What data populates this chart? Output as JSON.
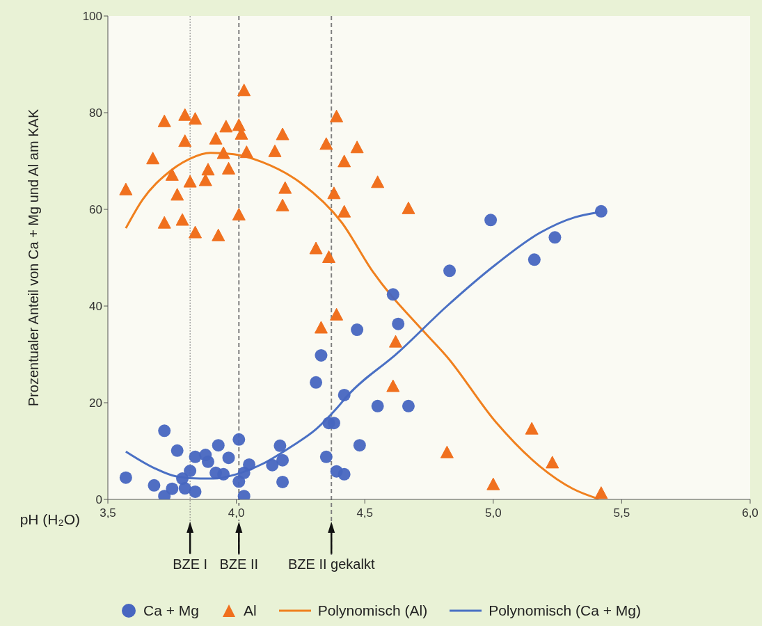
{
  "chart_data": {
    "type": "scatter",
    "ylabel": "Prozentualer Anteil von Ca + Mg und Al am KAK",
    "xlabel": "pH (H₂O)",
    "xlim": [
      3.5,
      6.0
    ],
    "xticks": [
      {
        "value": 3.5,
        "label": "3,5"
      },
      {
        "value": 4.0,
        "label": "4,0"
      },
      {
        "value": 4.5,
        "label": "4,5"
      },
      {
        "value": 5.0,
        "label": "5,0"
      },
      {
        "value": 5.5,
        "label": "5,5"
      },
      {
        "value": 6.0,
        "label": "6,0"
      }
    ],
    "ylim": [
      0,
      100
    ],
    "yticks": [
      0,
      20,
      40,
      60,
      80,
      100
    ],
    "grid": false,
    "legend": "bottom",
    "series": [
      {
        "name": "Ca + Mg",
        "type": "scatter",
        "marker": "circle",
        "color": "#4766c0",
        "x": [
          3.57,
          3.68,
          3.72,
          3.72,
          3.77,
          3.75,
          3.79,
          3.8,
          3.82,
          3.84,
          3.84,
          3.88,
          3.89,
          3.92,
          3.93,
          3.95,
          3.97,
          4.01,
          4.01,
          4.03,
          4.05,
          4.03,
          4.14,
          4.17,
          4.18,
          4.18,
          4.35,
          4.36,
          4.38,
          4.39,
          4.42,
          4.48,
          4.42,
          4.55,
          4.67,
          4.31,
          4.33,
          4.47,
          4.63,
          4.61,
          4.83,
          4.99,
          5.16,
          5.24,
          5.42
        ],
        "values": [
          4.5,
          2.9,
          14.2,
          0.7,
          10.1,
          2.2,
          4.3,
          2.3,
          5.9,
          1.6,
          8.8,
          9.2,
          7.8,
          5.5,
          11.2,
          5.2,
          8.6,
          12.4,
          3.7,
          5.5,
          7.2,
          0.7,
          7.1,
          11.1,
          8.1,
          3.6,
          8.8,
          15.8,
          15.8,
          5.8,
          5.2,
          11.2,
          21.6,
          19.3,
          19.3,
          24.2,
          29.8,
          35.1,
          36.3,
          42.4,
          47.3,
          57.8,
          49.6,
          54.2,
          59.6
        ]
      },
      {
        "name": "Al",
        "type": "scatter",
        "marker": "triangle",
        "color": "#f0701e",
        "x": [
          3.57,
          3.675,
          3.72,
          3.8,
          3.84,
          3.8,
          3.75,
          3.77,
          3.72,
          3.79,
          3.82,
          3.84,
          3.88,
          3.89,
          3.92,
          3.93,
          3.96,
          3.95,
          3.97,
          4.01,
          4.02,
          4.01,
          4.03,
          4.04,
          4.15,
          4.18,
          4.19,
          4.18,
          4.31,
          4.36,
          4.35,
          4.39,
          4.38,
          4.42,
          4.42,
          4.47,
          4.55,
          4.67,
          4.33,
          4.39,
          4.62,
          4.61,
          4.82,
          5.0,
          5.15,
          5.23,
          5.42
        ],
        "values": [
          64,
          70.4,
          78.1,
          79.4,
          78.6,
          74,
          67,
          62.9,
          57.1,
          57.7,
          65.6,
          55.1,
          65.9,
          68.1,
          74.5,
          54.5,
          77,
          71.5,
          68.3,
          77.3,
          75.5,
          58.8,
          84.5,
          71.7,
          71.9,
          75.4,
          64.3,
          60.7,
          51.8,
          50,
          73.4,
          79.1,
          63.2,
          59.4,
          69.8,
          72.7,
          65.5,
          60.1,
          35.4,
          38.1,
          32.5,
          23.3,
          9.6,
          3,
          14.5,
          7.5,
          1.2
        ]
      },
      {
        "name": "Polynomisch (Al)",
        "type": "line",
        "marker": "none",
        "line_style": "solid",
        "color": "#f0801e",
        "x": [
          3.57,
          3.635,
          3.74,
          3.82,
          3.9,
          3.99,
          4.1,
          4.25,
          4.41,
          4.53,
          4.73,
          4.82,
          5.01,
          5.18,
          5.31,
          5.41
        ],
        "values": [
          56.1,
          62,
          67.8,
          70.5,
          71.7,
          71.4,
          69.8,
          65.5,
          57.3,
          47.2,
          34.7,
          29.5,
          16,
          6.9,
          2.2,
          0.1
        ]
      },
      {
        "name": "Polynomisch (Ca + Mg)",
        "type": "line",
        "marker": "none",
        "line_style": "solid",
        "color": "#4a70c4",
        "x": [
          3.57,
          3.68,
          3.77,
          3.86,
          3.91,
          4.0,
          4.1,
          4.21,
          4.31,
          4.39,
          4.43,
          4.63,
          4.82,
          5.01,
          5.18,
          5.32,
          5.41
        ],
        "values": [
          9.9,
          6.5,
          4.7,
          4.3,
          4.3,
          5.2,
          7.3,
          10.8,
          14.5,
          18.8,
          21.3,
          30.4,
          40,
          48.6,
          55.1,
          58.4,
          59.4
        ]
      }
    ],
    "ref_lines": [
      {
        "axis": "x",
        "value": 3.82,
        "label": "BZE I",
        "color": "#808080",
        "line_style": "dotted"
      },
      {
        "axis": "x",
        "value": 4.01,
        "label": "BZE II",
        "color": "#808080",
        "line_style": "dashed"
      },
      {
        "axis": "x",
        "value": 4.37,
        "label": "BZE II gekalkt",
        "color": "#808080",
        "line_style": "dashed"
      }
    ]
  }
}
